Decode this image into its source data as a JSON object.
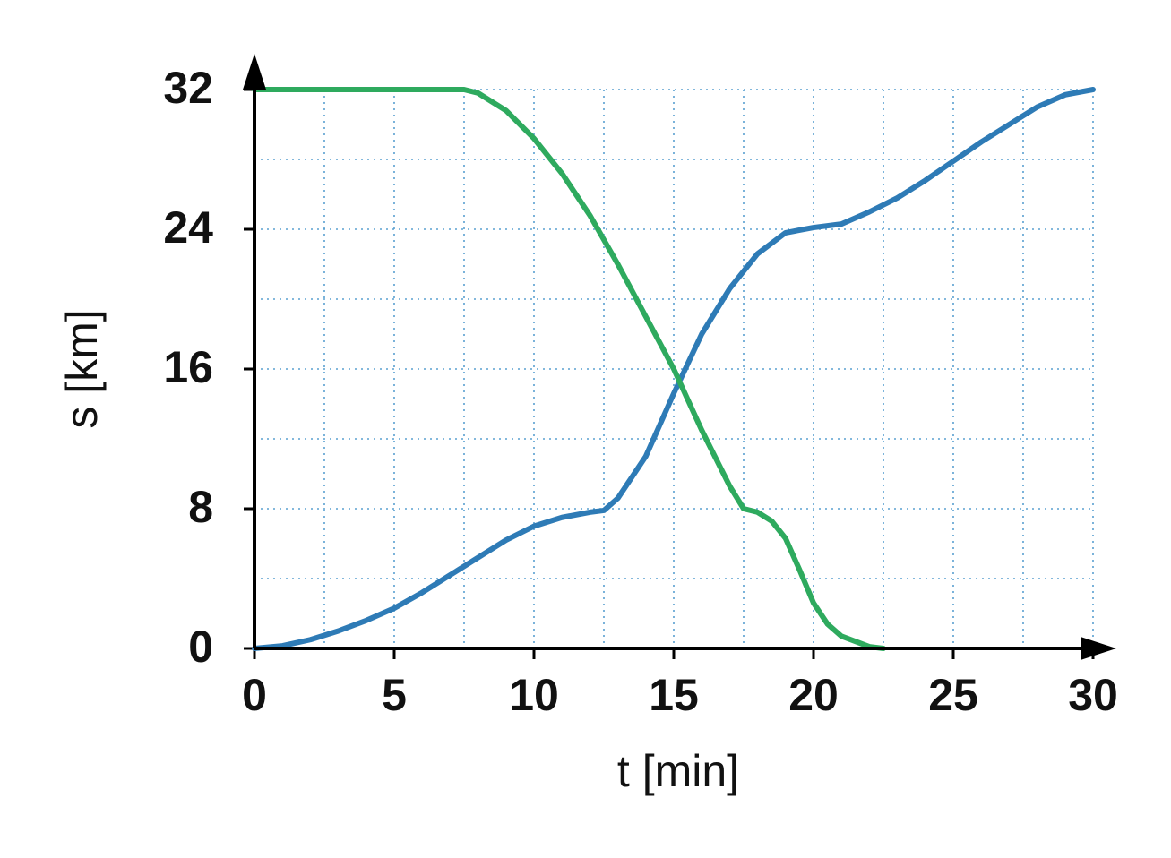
{
  "chart_data": {
    "type": "line",
    "x_label": "t [min]",
    "y_label": "s [km]",
    "xlim": [
      0,
      30
    ],
    "ylim": [
      0,
      32
    ],
    "xticks": [
      0,
      5,
      10,
      15,
      20,
      25,
      30
    ],
    "yticks": [
      0,
      8,
      16,
      24,
      32
    ],
    "grid": true,
    "grid_x": [
      0,
      2.5,
      5,
      7.5,
      10,
      12.5,
      15,
      17.5,
      20,
      22.5,
      25,
      27.5,
      30
    ],
    "grid_y": [
      0,
      4,
      8,
      12,
      16,
      20,
      24,
      28,
      32
    ],
    "series": [
      {
        "color": "#2e7bb6",
        "x": [
          0,
          1,
          2,
          3,
          4,
          5,
          6,
          7,
          8,
          9,
          10,
          11,
          12,
          12.5,
          13,
          14,
          15,
          16,
          17,
          18,
          19,
          20,
          21,
          22,
          23,
          24,
          25,
          26,
          27,
          28,
          29,
          30
        ],
        "values": [
          0,
          0.15,
          0.5,
          1.0,
          1.6,
          2.3,
          3.2,
          4.2,
          5.2,
          6.2,
          7.0,
          7.5,
          7.8,
          7.9,
          8.6,
          11,
          14.6,
          18,
          20.6,
          22.6,
          23.8,
          24.1,
          24.3,
          25,
          25.8,
          26.8,
          27.9,
          29,
          30,
          31,
          31.7,
          32
        ]
      },
      {
        "color": "#2eaa5e",
        "x": [
          0,
          7.5,
          8,
          9,
          10,
          11,
          12,
          13,
          14,
          15,
          16,
          17,
          17.5,
          18,
          18.5,
          19,
          19.5,
          20,
          20.5,
          21,
          22,
          22.5
        ],
        "values": [
          32,
          32,
          31.8,
          30.8,
          29.2,
          27.2,
          24.8,
          22,
          19,
          16,
          12.5,
          9.3,
          8,
          7.8,
          7.3,
          6.3,
          4.5,
          2.6,
          1.4,
          0.7,
          0.1,
          0
        ]
      }
    ]
  }
}
